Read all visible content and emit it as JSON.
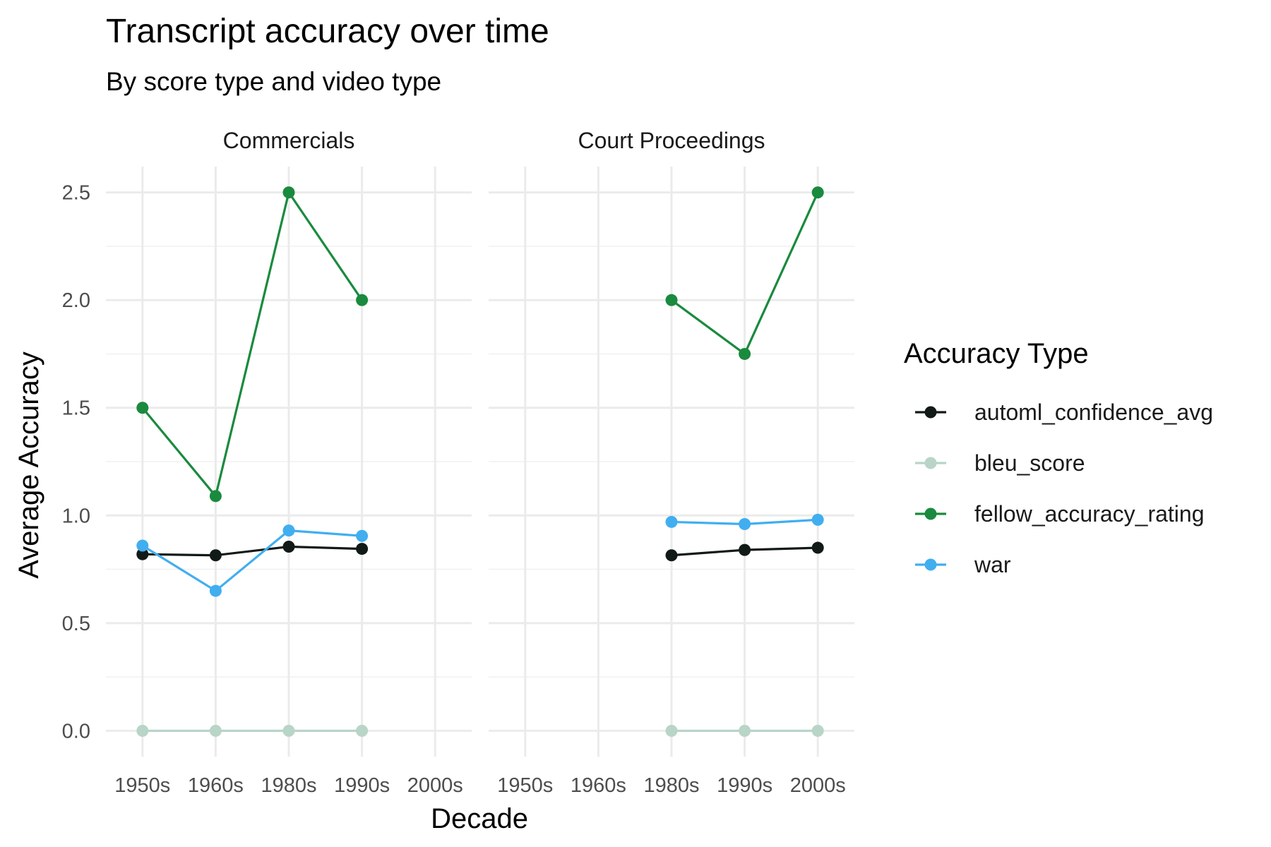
{
  "chart_data": {
    "type": "line",
    "title": "Transcript accuracy over time",
    "subtitle": "By score type and video type",
    "xlabel": "Decade",
    "ylabel": "Average Accuracy",
    "categories": [
      "1950s",
      "1960s",
      "1980s",
      "1990s",
      "2000s"
    ],
    "ylim": [
      -0.12,
      2.62
    ],
    "y_ticks": [
      0.0,
      0.5,
      1.0,
      1.5,
      2.0,
      2.5
    ],
    "y_tick_labels": [
      "0.0",
      "0.5",
      "1.0",
      "1.5",
      "2.0",
      "2.5"
    ],
    "grid": true,
    "legend": {
      "title": "Accuracy Type",
      "position": "right"
    },
    "series_colors": {
      "automl_confidence_avg": "#111a17",
      "bleu_score": "#b8d5c8",
      "fellow_accuracy_rating": "#1a8a3e",
      "war": "#41aef0"
    },
    "series_order": [
      "automl_confidence_avg",
      "bleu_score",
      "fellow_accuracy_rating",
      "war"
    ],
    "panels": [
      {
        "label": "Commercials",
        "series": [
          {
            "name": "automl_confidence_avg",
            "values": [
              0.82,
              0.815,
              0.855,
              0.845,
              null
            ]
          },
          {
            "name": "bleu_score",
            "values": [
              0.0,
              0.0,
              0.0,
              0.0,
              null
            ]
          },
          {
            "name": "fellow_accuracy_rating",
            "values": [
              1.5,
              1.09,
              2.5,
              2.0,
              null
            ]
          },
          {
            "name": "war",
            "values": [
              0.86,
              0.65,
              0.93,
              0.905,
              null
            ]
          }
        ]
      },
      {
        "label": "Court Proceedings",
        "series": [
          {
            "name": "automl_confidence_avg",
            "values": [
              null,
              null,
              0.815,
              0.84,
              0.85
            ]
          },
          {
            "name": "bleu_score",
            "values": [
              null,
              null,
              0.0,
              0.0,
              0.0
            ]
          },
          {
            "name": "fellow_accuracy_rating",
            "values": [
              null,
              null,
              2.0,
              1.75,
              2.5
            ]
          },
          {
            "name": "war",
            "values": [
              null,
              null,
              0.97,
              0.96,
              0.98
            ]
          }
        ]
      }
    ]
  }
}
